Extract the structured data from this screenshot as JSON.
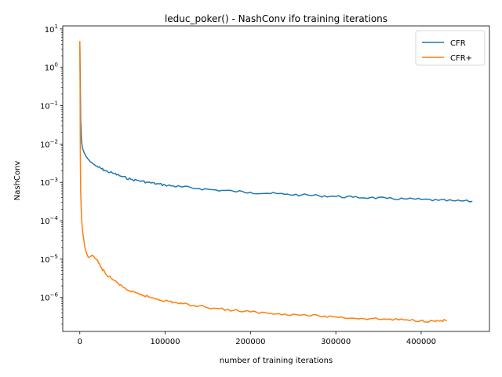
{
  "chart_data": {
    "type": "line",
    "title": "leduc_poker() - NashConv ifo training iterations",
    "xlabel": "number of training iterations",
    "ylabel": "NashConv",
    "xlim": [
      -20000,
      480000
    ],
    "ylim": [
      1.3e-07,
      12
    ],
    "yscale": "log",
    "xticks": [
      0,
      100000,
      200000,
      300000,
      400000
    ],
    "xtick_labels": [
      "0",
      "100000",
      "200000",
      "300000",
      "400000"
    ],
    "yticks": [
      1e-06,
      1e-05,
      0.0001,
      0.001,
      0.01,
      0.1,
      1,
      10
    ],
    "ytick_base": "10",
    "ytick_exponents": [
      "−6",
      "−5",
      "−4",
      "−3",
      "−2",
      "−1",
      "0",
      "1"
    ],
    "grid": false,
    "legend": "top-right",
    "series": [
      {
        "name": "CFR",
        "color": "#1f77b4",
        "x": [
          0,
          500,
          1000,
          2000,
          3000,
          5000,
          8000,
          12000,
          16000,
          20000,
          25000,
          30000,
          40000,
          50000,
          60000,
          70000,
          80000,
          90000,
          100000,
          110000,
          120000,
          140000,
          160000,
          180000,
          200000,
          220000,
          240000,
          260000,
          280000,
          300000,
          320000,
          340000,
          360000,
          380000,
          400000,
          420000,
          440000,
          460000
        ],
        "y": [
          4.8,
          0.5,
          0.04,
          0.012,
          0.008,
          0.006,
          0.0045,
          0.0035,
          0.003,
          0.0026,
          0.0023,
          0.002,
          0.0017,
          0.0014,
          0.0012,
          0.0011,
          0.001,
          0.00092,
          0.00085,
          0.0008,
          0.00076,
          0.00069,
          0.00063,
          0.00059,
          0.00055,
          0.00052,
          0.00049,
          0.00047,
          0.00045,
          0.00043,
          0.00041,
          0.0004,
          0.00038,
          0.00037,
          0.00036,
          0.00034,
          0.00033,
          0.00032
        ]
      },
      {
        "name": "CFR+",
        "color": "#ff7f0e",
        "x": [
          0,
          300,
          600,
          1000,
          1500,
          2000,
          3000,
          4000,
          6000,
          8000,
          10000,
          12000,
          14000,
          16000,
          18000,
          20000,
          25000,
          30000,
          40000,
          50000,
          60000,
          70000,
          80000,
          90000,
          100000,
          110000,
          120000,
          140000,
          160000,
          180000,
          200000,
          220000,
          240000,
          260000,
          280000,
          300000,
          320000,
          340000,
          360000,
          380000,
          400000,
          410000,
          420000,
          430000
        ],
        "y": [
          4.8,
          0.3,
          0.005,
          0.0006,
          0.00025,
          0.00012,
          6e-05,
          4e-05,
          2e-05,
          1.4e-05,
          1.1e-05,
          1.15e-05,
          1.25e-05,
          1.2e-05,
          1.05e-05,
          9.5e-06,
          6e-06,
          4.2e-06,
          2.8e-06,
          1.9e-06,
          1.4e-06,
          1.2e-06,
          1.05e-06,
          9.2e-07,
          8.2e-07,
          7.5e-07,
          6.8e-07,
          6e-07,
          5.2e-07,
          4.6e-07,
          4.2e-07,
          3.9e-07,
          3.7e-07,
          3.5e-07,
          3.3e-07,
          3.1e-07,
          2.9e-07,
          2.8e-07,
          2.7e-07,
          2.6e-07,
          2.5e-07,
          2.4e-07,
          2.45e-07,
          2.5e-07
        ]
      }
    ]
  }
}
